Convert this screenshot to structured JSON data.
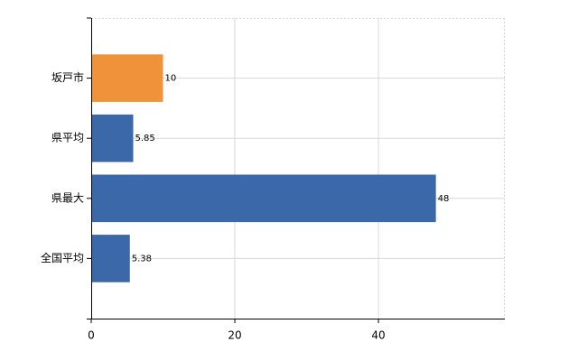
{
  "chart_data": {
    "type": "bar",
    "orientation": "horizontal",
    "categories": [
      "坂戸市",
      "県平均",
      "県最大",
      "全国平均"
    ],
    "values": [
      10,
      5.85,
      48,
      5.38
    ],
    "colors": [
      "#f0923a",
      "#3a68a8",
      "#3a68a8",
      "#3a68a8"
    ],
    "xlim": [
      0,
      57.6
    ],
    "xticks": [
      0,
      20,
      40
    ],
    "grid": true
  }
}
